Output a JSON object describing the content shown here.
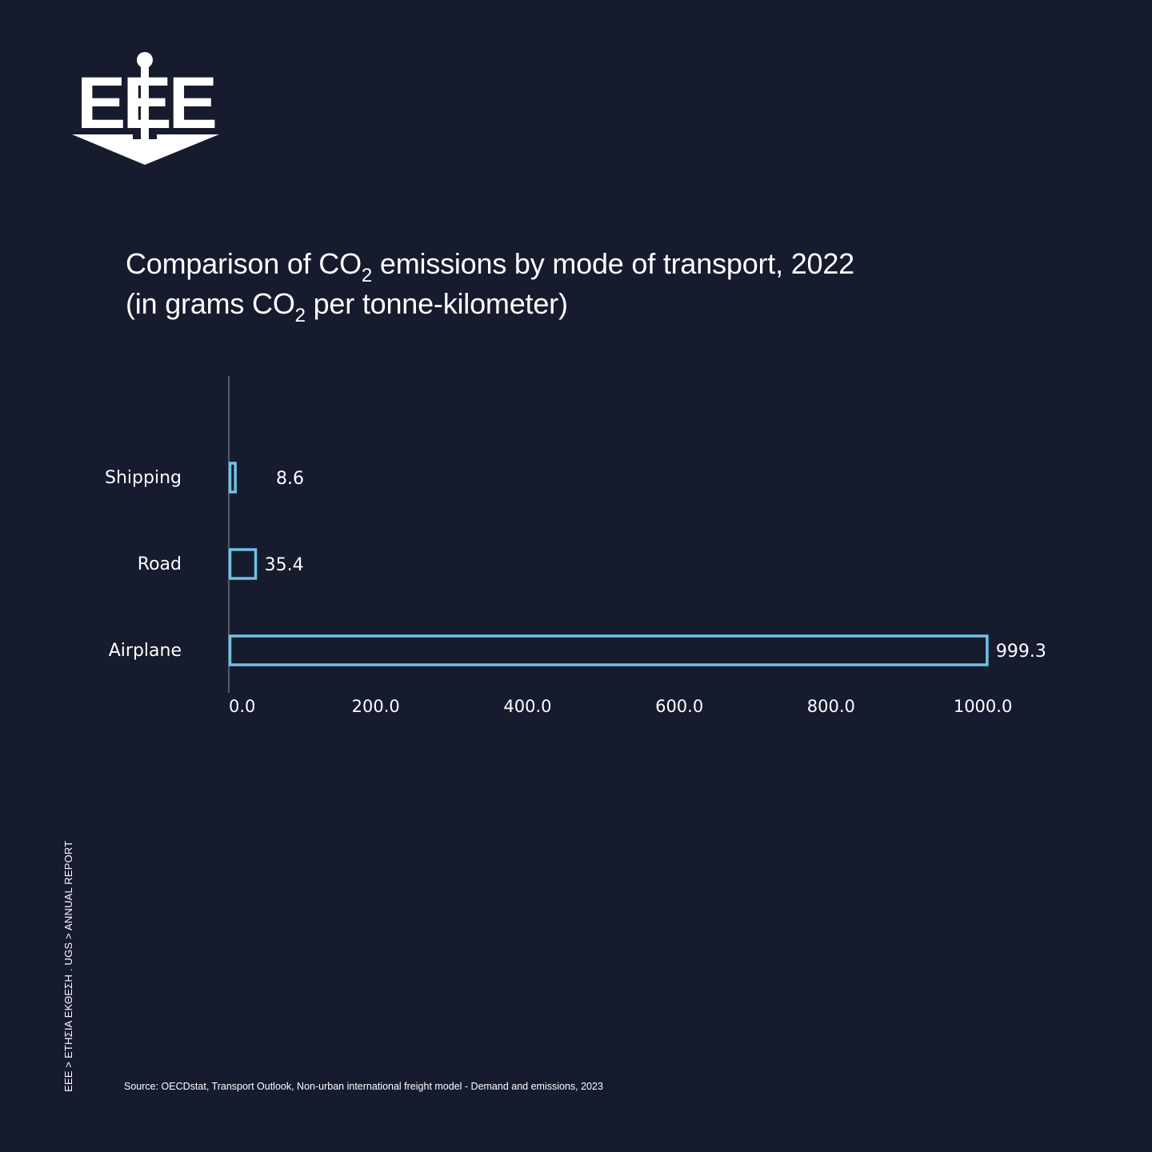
{
  "brand": {
    "logo_text": "EEE",
    "side_text": "EEE > ΕΤΗΣΙΑ ΕΚΘΕΣΗ . UGS > ANNUAL REPORT"
  },
  "colors": {
    "background": "#161b2e",
    "bar_stroke": "#6ec3e6",
    "axis": "#6b6f7e",
    "text": "#ffffff"
  },
  "chart_data": {
    "type": "bar",
    "orientation": "horizontal",
    "title_line1_pre": "Comparison of CO",
    "title_line1_sub": "2",
    "title_line1_post": " emissions by mode of transport, 2022",
    "title_line2_pre": "(in grams CO",
    "title_line2_sub": "2",
    "title_line2_post": " per tonne-kilometer)",
    "categories": [
      "Shipping",
      "Road",
      "Airplane"
    ],
    "values": [
      8.6,
      35.4,
      999.3
    ],
    "value_labels": [
      "8.6",
      "35.4",
      "999.3"
    ],
    "xticks": [
      0,
      200,
      400,
      600,
      800,
      1000
    ],
    "xtick_labels": [
      "0.0",
      "200.0",
      "400.0",
      "600.0",
      "800.0",
      "1000.0"
    ],
    "xlim": [
      0,
      1050
    ],
    "grid": false,
    "legend": "none"
  },
  "source": "Source: OECDstat, Transport Outlook, Non-urban international freight model - Demand and emissions, 2023"
}
